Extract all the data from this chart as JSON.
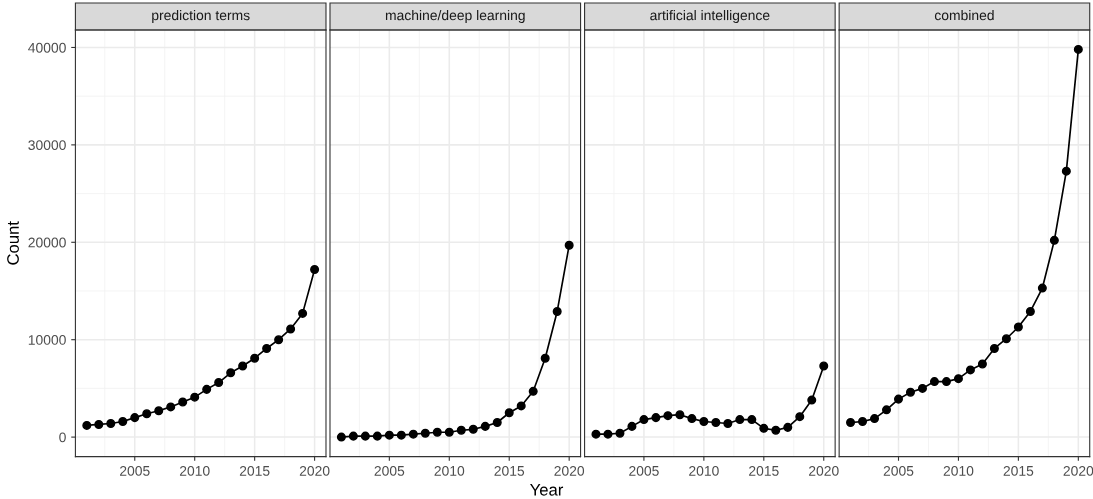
{
  "chart_data": [
    {
      "type": "line",
      "title": "prediction terms",
      "ylabel": "Count",
      "x": [
        2001,
        2002,
        2003,
        2004,
        2005,
        2006,
        2007,
        2008,
        2009,
        2010,
        2011,
        2012,
        2013,
        2014,
        2015,
        2016,
        2017,
        2018,
        2019,
        2020
      ],
      "series": [
        {
          "color": "#000000",
          "values": [
            1200,
            1300,
            1400,
            1600,
            2000,
            2400,
            2700,
            3100,
            3600,
            4100,
            4900,
            5600,
            6600,
            7300,
            8100,
            9100,
            10000,
            11100,
            12700,
            17200
          ]
        }
      ],
      "xlim": [
        2000.05,
        2020.95
      ],
      "ylim": [
        -2000,
        41800
      ],
      "xticks": [
        2005,
        2010,
        2015,
        2020
      ],
      "yticks": [
        0,
        10000,
        20000,
        30000,
        40000
      ],
      "grid": true,
      "marker": "circle",
      "line_style": "solid"
    },
    {
      "type": "line",
      "title": "machine/deep learning",
      "xlabel": "Year",
      "x": [
        2001,
        2002,
        2003,
        2004,
        2005,
        2006,
        2007,
        2008,
        2009,
        2010,
        2011,
        2012,
        2013,
        2014,
        2015,
        2016,
        2017,
        2018,
        2019,
        2020
      ],
      "series": [
        {
          "color": "#000000",
          "values": [
            0,
            100,
            100,
            100,
            200,
            200,
            300,
            400,
            500,
            500,
            700,
            800,
            1100,
            1500,
            2500,
            3200,
            4700,
            8100,
            12900,
            19700
          ]
        }
      ],
      "xlim": [
        2000.05,
        2020.95
      ],
      "ylim": [
        -2000,
        41800
      ],
      "xticks": [
        2005,
        2010,
        2015,
        2020
      ],
      "yticks": [
        0,
        10000,
        20000,
        30000,
        40000
      ],
      "grid": true,
      "marker": "circle",
      "line_style": "solid",
      "tick_labels": "x"
    },
    {
      "type": "line",
      "title": "artificial intelligence",
      "x": [
        2001,
        2002,
        2003,
        2004,
        2005,
        2006,
        2007,
        2008,
        2009,
        2010,
        2011,
        2012,
        2013,
        2014,
        2015,
        2016,
        2017,
        2018,
        2019,
        2020
      ],
      "series": [
        {
          "color": "#000000",
          "values": [
            300,
            300,
            400,
            1100,
            1800,
            2000,
            2200,
            2300,
            1900,
            1600,
            1500,
            1400,
            1800,
            1800,
            900,
            700,
            1000,
            2100,
            3800,
            7300
          ]
        }
      ],
      "xlim": [
        2000.05,
        2020.95
      ],
      "ylim": [
        -2000,
        41800
      ],
      "xticks": [
        2005,
        2010,
        2015,
        2020
      ],
      "yticks": [
        0,
        10000,
        20000,
        30000,
        40000
      ],
      "grid": true,
      "marker": "circle",
      "line_style": "solid",
      "tick_labels": "x"
    },
    {
      "type": "line",
      "title": "combined",
      "x": [
        2001,
        2002,
        2003,
        2004,
        2005,
        2006,
        2007,
        2008,
        2009,
        2010,
        2011,
        2012,
        2013,
        2014,
        2015,
        2016,
        2017,
        2018,
        2019,
        2020
      ],
      "series": [
        {
          "color": "#000000",
          "values": [
            1500,
            1600,
            1900,
            2800,
            3900,
            4600,
            5000,
            5700,
            5700,
            6000,
            6900,
            7500,
            9100,
            10100,
            11300,
            12900,
            15300,
            20200,
            27300,
            39800
          ]
        }
      ],
      "xlim": [
        2000.05,
        2020.95
      ],
      "ylim": [
        -2000,
        41800
      ],
      "xticks": [
        2005,
        2010,
        2015,
        2020
      ],
      "yticks": [
        0,
        10000,
        20000,
        30000,
        40000
      ],
      "grid": true,
      "marker": "circle",
      "line_style": "solid",
      "tick_labels": "x"
    }
  ]
}
